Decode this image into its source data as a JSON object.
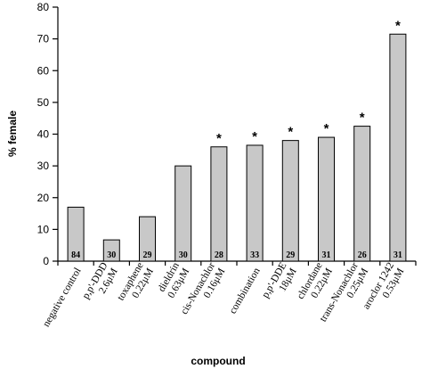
{
  "chart_data": {
    "type": "bar",
    "title": "",
    "xlabel": "compound",
    "ylabel": "% female",
    "ylim": [
      0,
      80
    ],
    "yticks": [
      0,
      10,
      20,
      30,
      40,
      50,
      60,
      70,
      80
    ],
    "grid": false,
    "categories": [
      [
        "negative control"
      ],
      [
        "p,p'-DDD",
        "2.6μM"
      ],
      [
        "toxaphene",
        "0.22μM"
      ],
      [
        "dieldrin",
        "0.63μM"
      ],
      [
        "cis-Nonachlor",
        "0.16μM"
      ],
      [
        "combination"
      ],
      [
        "p,p'-DDE",
        "18μM"
      ],
      [
        "chlordane",
        "0.22μM"
      ],
      [
        "trans-Nonachlor",
        "0.25μM"
      ],
      [
        "aroclor 1242",
        "0.53μM"
      ]
    ],
    "values": [
      17,
      6.7,
      14,
      30,
      36,
      36.5,
      38,
      39,
      42.5,
      71.5
    ],
    "n_labels": [
      "84",
      "30",
      "29",
      "30",
      "28",
      "33",
      "29",
      "31",
      "26",
      "31"
    ],
    "significant": [
      false,
      false,
      false,
      false,
      true,
      true,
      true,
      true,
      true,
      true
    ],
    "significance_marker": "*",
    "bar_color": "#c8c8c8",
    "bar_edge_color": "#000000"
  }
}
